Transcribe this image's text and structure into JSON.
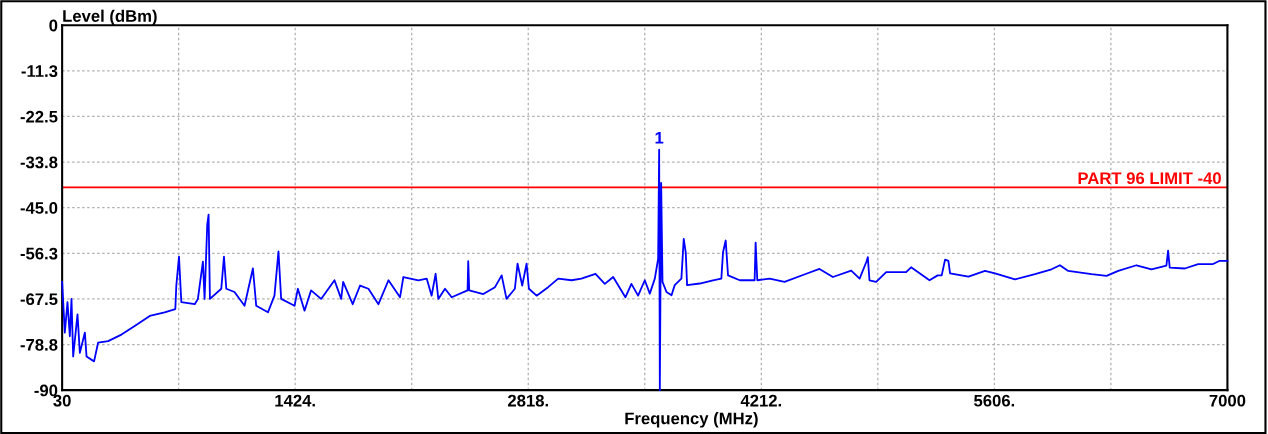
{
  "chart_data": {
    "type": "line",
    "xlabel": "Frequency (MHz)",
    "ylabel": "Level (dBm)",
    "xlim": [
      30,
      7000
    ],
    "xticks": [
      30,
      {
        "value": 727,
        "label": null
      },
      {
        "value": 1424,
        "label": "1424."
      },
      {
        "value": 2121,
        "label": null
      },
      {
        "value": 2818,
        "label": "2818."
      },
      {
        "value": 3515,
        "label": null
      },
      {
        "value": 4212,
        "label": "4212."
      },
      {
        "value": 4909,
        "label": null
      },
      {
        "value": 5606,
        "label": "5606."
      },
      {
        "value": 6303,
        "label": null
      },
      7000
    ],
    "ylim": [
      -90,
      0
    ],
    "yticks": [
      0,
      {
        "value": -11.25,
        "label": "-11.3"
      },
      {
        "value": -22.5,
        "label": "-22.5"
      },
      {
        "value": -33.75,
        "label": "-33.8"
      },
      {
        "value": -45,
        "label": "-45.0"
      },
      {
        "value": -56.25,
        "label": "-56.3"
      },
      {
        "value": -67.5,
        "label": "-67.5"
      },
      {
        "value": -78.75,
        "label": "-78.8"
      },
      -90
    ],
    "grid": true,
    "marker": "none",
    "line_style": "solid",
    "series": [
      {
        "color": "#0000ff",
        "x": [
          30,
          46,
          62,
          76,
          86,
          96,
          122,
          136,
          166,
          176,
          221,
          245,
          305,
          385,
          464,
          554,
          643,
          707,
          713,
          729,
          743,
          823,
          842,
          872,
          882,
          898,
          906,
          914,
          982,
          998,
          1012,
          1061,
          1121,
          1171,
          1191,
          1261,
          1300,
          1324,
          1340,
          1420,
          1440,
          1480,
          1519,
          1579,
          1659,
          1699,
          1711,
          1768,
          1812,
          1862,
          1922,
          1982,
          2051,
          2071,
          2161,
          2211,
          2240,
          2264,
          2280,
          2320,
          2360,
          2455,
          2459,
          2465,
          2549,
          2619,
          2659,
          2688,
          2738,
          2754,
          2782,
          2808,
          2822,
          2868,
          2937,
          2997,
          3077,
          3136,
          3220,
          3276,
          3326,
          3399,
          3435,
          3475,
          3515,
          3545,
          3575,
          3595,
          3601,
          3605,
          3613,
          3621,
          3645,
          3675,
          3694,
          3734,
          3748,
          3760,
          3768,
          3844,
          3923,
          3973,
          3983,
          3999,
          4013,
          4083,
          4172,
          4178,
          4188,
          4262,
          4351,
          4481,
          4560,
          4640,
          4750,
          4800,
          4840,
          4849,
          4859,
          4899,
          4959,
          5078,
          5108,
          5218,
          5267,
          5291,
          5311,
          5331,
          5341,
          5451,
          5550,
          5610,
          5729,
          5849,
          5948,
          5998,
          6048,
          6187,
          6277,
          6347,
          6456,
          6546,
          6635,
          6645,
          6655,
          6745,
          6825,
          6914,
          6954,
          7000
        ],
        "values": [
          -63.3,
          -75.8,
          -68.3,
          -76.7,
          -67.5,
          -81.7,
          -71.3,
          -80.8,
          -75.8,
          -81.7,
          -82.9,
          -78.3,
          -77.9,
          -76.3,
          -74.2,
          -71.7,
          -70.8,
          -70.0,
          -64.2,
          -57.1,
          -68.3,
          -68.8,
          -67.5,
          -58.3,
          -67.5,
          -49.2,
          -46.7,
          -67.5,
          -65.0,
          -57.1,
          -65.0,
          -65.8,
          -69.2,
          -60.0,
          -69.2,
          -70.8,
          -66.7,
          -55.8,
          -67.5,
          -69.2,
          -65.0,
          -70.4,
          -65.4,
          -67.5,
          -62.9,
          -67.5,
          -63.3,
          -68.8,
          -64.2,
          -65.0,
          -68.8,
          -62.9,
          -67.1,
          -62.1,
          -62.9,
          -62.5,
          -66.7,
          -61.3,
          -67.5,
          -65.0,
          -67.1,
          -65.4,
          -58.2,
          -65.4,
          -66.3,
          -64.6,
          -61.7,
          -67.5,
          -65.0,
          -58.8,
          -64.2,
          -58.8,
          -65.0,
          -66.7,
          -64.6,
          -62.5,
          -62.9,
          -62.5,
          -61.3,
          -63.8,
          -62.1,
          -67.1,
          -63.8,
          -66.7,
          -62.9,
          -66.2,
          -62.5,
          -57.6,
          -30.7,
          -90,
          -38.9,
          -63.3,
          -65.8,
          -66.6,
          -64.1,
          -62.5,
          -52.7,
          -56.0,
          -64.1,
          -63.7,
          -62.9,
          -62.5,
          -56.0,
          -53.1,
          -61.7,
          -62.9,
          -62.9,
          -53.6,
          -62.9,
          -62.5,
          -63.3,
          -61.3,
          -60.1,
          -62.1,
          -60.5,
          -62.5,
          -58.4,
          -57.2,
          -62.9,
          -63.3,
          -60.9,
          -60.9,
          -59.7,
          -62.9,
          -61.7,
          -61.7,
          -57.8,
          -58.1,
          -61.2,
          -62.0,
          -60.6,
          -61.2,
          -62.7,
          -61.4,
          -60.2,
          -59.2,
          -60.6,
          -61.4,
          -61.8,
          -60.6,
          -59.2,
          -60.2,
          -59.3,
          -55.6,
          -59.8,
          -60.0,
          -58.9,
          -58.9,
          -58.1,
          -58.1
        ]
      }
    ],
    "ref_lines": [
      {
        "axis": "y",
        "value": -40,
        "label": "PART 96 LIMIT -40",
        "color": "#ff0000"
      }
    ],
    "annotations": [
      {
        "text": "1",
        "x": 3601,
        "y": -30.7
      }
    ]
  }
}
